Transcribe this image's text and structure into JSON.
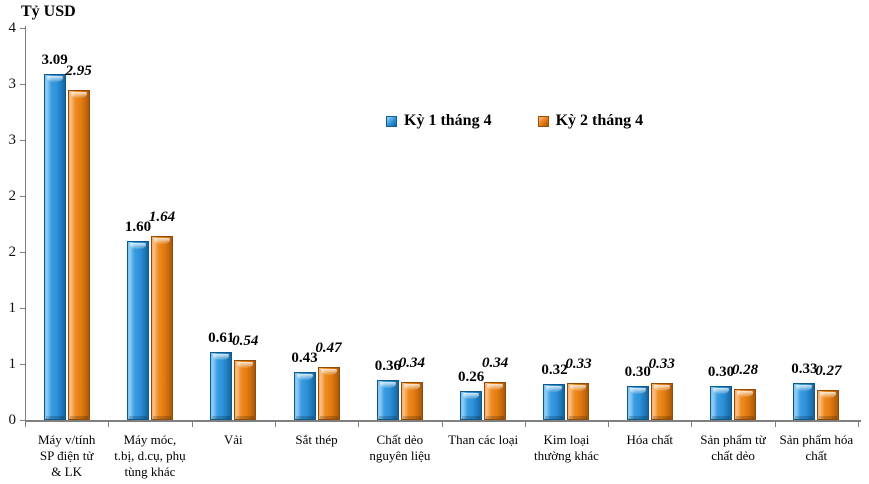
{
  "chart_data": {
    "type": "bar",
    "title": "Tỷ USD",
    "xlabel": "",
    "ylabel": "Tỷ USD",
    "grid": false,
    "legend_position": "top-center-floating",
    "data_labels": true,
    "ylim": [
      0,
      3.5
    ],
    "y_tick_step": 0.5,
    "y_tick_labels": [
      "0",
      "1",
      "1",
      "2",
      "2",
      "3",
      "3",
      "4"
    ],
    "categories": [
      "Máy v/tính\nSP điện tử\n& LK",
      "Máy móc,\nt.bị, d.cụ, phụ\ntùng khác",
      "Vải",
      "Sắt thép",
      "Chất dẻo\nnguyên liệu",
      "Than các loại",
      "Kim loại\nthường khác",
      "Hóa chất",
      "Sản phẩm từ\nchất dẻo",
      "Sản phẩm hóa\nchất"
    ],
    "series": [
      {
        "name": "Kỳ 1 tháng 4",
        "color": "#2E93DC",
        "border_color": "#115E95",
        "values": [
          3.09,
          1.6,
          0.61,
          0.43,
          0.36,
          0.26,
          0.32,
          0.3,
          0.3,
          0.33
        ]
      },
      {
        "name": "Kỳ 2 tháng 4",
        "color": "#E87A10",
        "border_color": "#955009",
        "values": [
          2.95,
          1.64,
          0.54,
          0.47,
          0.34,
          0.34,
          0.33,
          0.33,
          0.28,
          0.27
        ]
      }
    ],
    "axis_color": "#7F7F7F",
    "text_color": "#000000"
  }
}
